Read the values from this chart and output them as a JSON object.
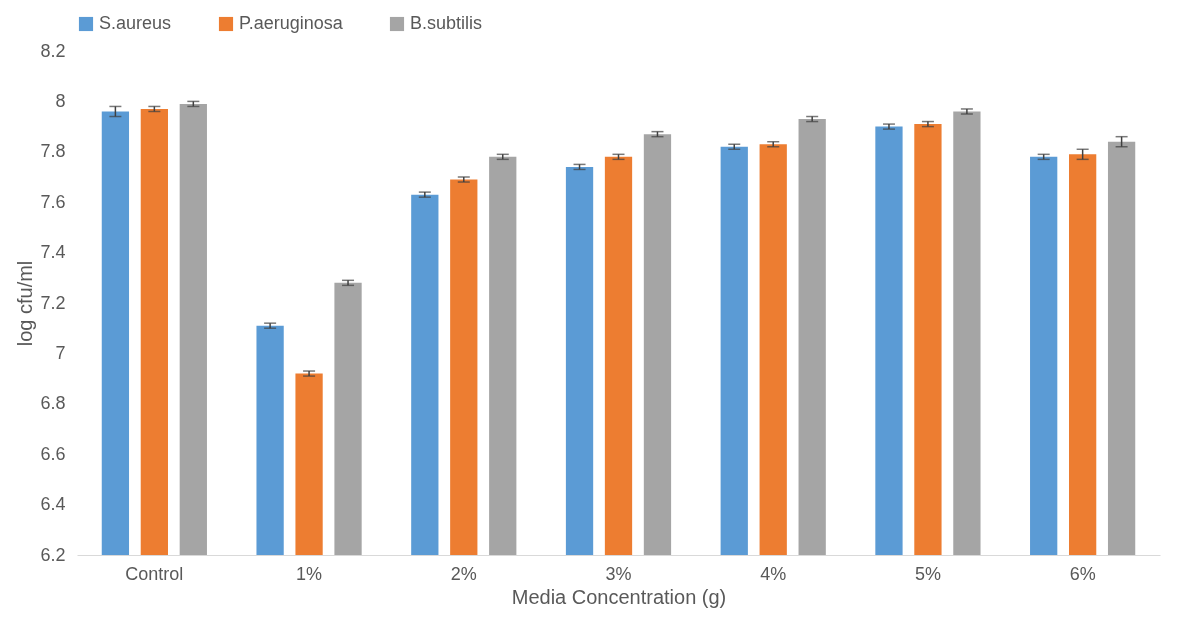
{
  "chart_data": {
    "type": "bar",
    "xlabel": "Media Concentration (g)",
    "ylabel": "log cfu/ml",
    "categories": [
      "Control",
      "1%",
      "2%",
      "3%",
      "4%",
      "5%",
      "6%"
    ],
    "series": [
      {
        "name": "S.aureus",
        "color": "#5b9bd5",
        "values": [
          7.96,
          7.11,
          7.63,
          7.74,
          7.82,
          7.9,
          7.78
        ],
        "errors": [
          0.02,
          0.01,
          0.01,
          0.01,
          0.01,
          0.01,
          0.01
        ]
      },
      {
        "name": "P.aeruginosa",
        "color": "#ed7d31",
        "values": [
          7.97,
          6.92,
          7.69,
          7.78,
          7.83,
          7.91,
          7.79
        ],
        "errors": [
          0.01,
          0.01,
          0.01,
          0.01,
          0.01,
          0.01,
          0.02
        ]
      },
      {
        "name": "B.subtilis",
        "color": "#a5a5a5",
        "values": [
          7.99,
          7.28,
          7.78,
          7.87,
          7.93,
          7.96,
          7.84
        ],
        "errors": [
          0.01,
          0.01,
          0.01,
          0.01,
          0.01,
          0.01,
          0.02
        ]
      }
    ],
    "ylim": [
      6.2,
      8.2
    ],
    "yticks": [
      6.2,
      6.4,
      6.6,
      6.8,
      7,
      7.2,
      7.4,
      7.6,
      7.8,
      8,
      8.2
    ],
    "grid": false,
    "legend": "top"
  }
}
